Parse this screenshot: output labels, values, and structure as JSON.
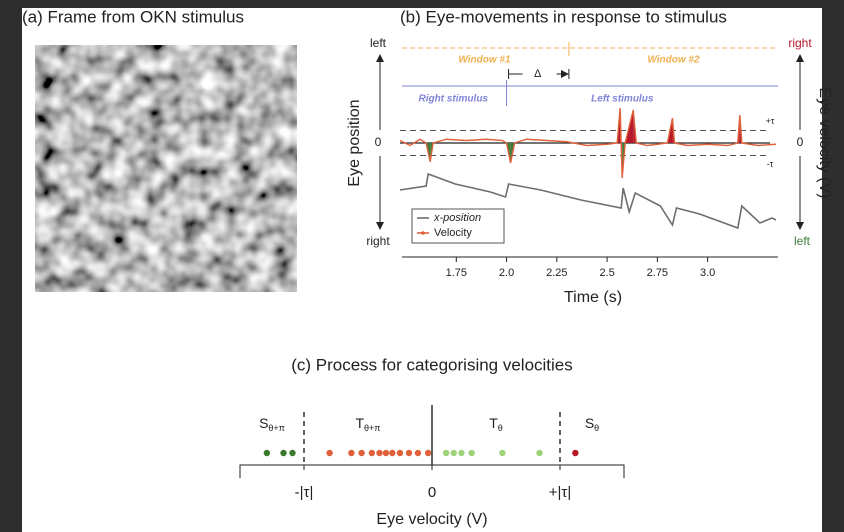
{
  "panel_a": {
    "title": "(a) Frame from OKN stimulus"
  },
  "chart_data": [
    {
      "type": "line",
      "title": "(b) Eye-movements in response to stimulus",
      "xlabel": "Time (s)",
      "ylabel": "Eye position",
      "y_top_label": "left",
      "y_bottom_label": "right",
      "y2label": "Eye velocity (V)",
      "y2_top_label": "right",
      "y2_bottom_label": "left",
      "y2_top_color": "#b5192a",
      "y2_bottom_color": "#3f7d3a",
      "xlim": [
        1.47,
        3.35
      ],
      "xticks": [
        1.75,
        {
          "value": 2,
          "label": "2.0"
        },
        2.25,
        2.5,
        {
          "value": 2.75,
          "label": "2.75"
        },
        {
          "value": 3,
          "label": "3.0"
        }
      ],
      "ylim": [
        -7,
        7
      ],
      "yticks": [
        0
      ],
      "y2lim": [
        -7,
        7
      ],
      "y2ticks": [
        {
          "value": 1,
          "label": "+τ"
        },
        0,
        {
          "value": -1,
          "label": "-τ"
        }
      ],
      "series": [
        {
          "name": "x-position",
          "color": "#6e6e6e",
          "x": [
            1.47,
            1.6,
            1.61,
            1.745,
            1.92,
            1.995,
            2.01,
            2.17,
            2.37,
            2.57,
            2.58,
            2.61,
            2.64,
            2.765,
            2.825,
            2.845,
            2.96,
            3.15,
            3.17,
            3.26,
            3.32,
            3.34
          ],
          "values": [
            -3.76,
            -3.44,
            -2.48,
            -3.28,
            -3.92,
            -4.32,
            -3.28,
            -3.76,
            -4.56,
            -5.2,
            -3.6,
            -5.52,
            -4.0,
            -5.04,
            -6.56,
            -5.2,
            -5.68,
            -6.8,
            -5.04,
            -6.4,
            -6.0,
            -6.16
          ]
        },
        {
          "name": "Velocity",
          "color": "#e0603a",
          "axis": "y2",
          "positive_color": "#b5192a",
          "negative_color": "#3f7d3a",
          "x": [
            1.47,
            1.52,
            1.57,
            1.6,
            1.62,
            1.635,
            1.7,
            1.8,
            1.9,
            1.98,
            2.0,
            2.02,
            2.04,
            2.1,
            2.2,
            2.3,
            2.4,
            2.5,
            2.55,
            2.565,
            2.575,
            2.59,
            2.63,
            2.645,
            2.7,
            2.8,
            2.825,
            2.835,
            2.9,
            3.0,
            3.1,
            3.15,
            3.16,
            3.17,
            3.25,
            3.34
          ],
          "values": [
            0.2,
            -0.2,
            0.3,
            0,
            -1.5,
            0,
            0.3,
            0.2,
            0.3,
            0.2,
            0,
            -1.6,
            0,
            0.3,
            0.2,
            0.1,
            -0.2,
            -0.1,
            0,
            2.8,
            -2.8,
            0,
            2.64,
            0,
            -0.2,
            0,
            2.0,
            0,
            -0.2,
            -0.1,
            -0.2,
            0,
            2.24,
            0,
            -0.2,
            -0.1
          ]
        }
      ],
      "legend": "lower left",
      "windows": [
        "Window #1",
        "Window #2"
      ],
      "window_color": "#f0b050",
      "window_split": 2.31,
      "stimuli": [
        "Right stimulus",
        "Left stimulus"
      ],
      "stimulus_color": "#7f84d6",
      "stimulus_split": 2.0,
      "delta_label": "Δ"
    },
    {
      "type": "strip",
      "title": "(c) Process for categorising velocities",
      "xlabel": "Eye velocity (V)",
      "xlim": [
        -1.5,
        1.5
      ],
      "xticks": [
        {
          "value": -1,
          "label": "-|τ|"
        },
        0,
        {
          "value": 1,
          "label": "+|τ|"
        }
      ],
      "groups": [
        {
          "label": {
            "main": "S",
            "sub": "θ+π"
          },
          "color": "#3a7a2e",
          "values": [
            -1.29,
            -1.16,
            -1.09
          ]
        },
        {
          "label": {
            "main": "T",
            "sub": "θ+π"
          },
          "color": "#e0603a",
          "values": [
            -0.8,
            -0.63,
            -0.55,
            -0.47,
            -0.41,
            -0.36,
            -0.31,
            -0.25,
            -0.18,
            -0.11,
            -0.03
          ]
        },
        {
          "label": {
            "main": "T",
            "sub": "θ"
          },
          "color": "#9fd37a",
          "values": [
            0.11,
            0.17,
            0.23,
            0.31,
            0.55,
            0.84
          ]
        },
        {
          "label": {
            "main": "S",
            "sub": "θ"
          },
          "color": "#b5192a",
          "values": [
            1.12
          ]
        }
      ]
    }
  ]
}
